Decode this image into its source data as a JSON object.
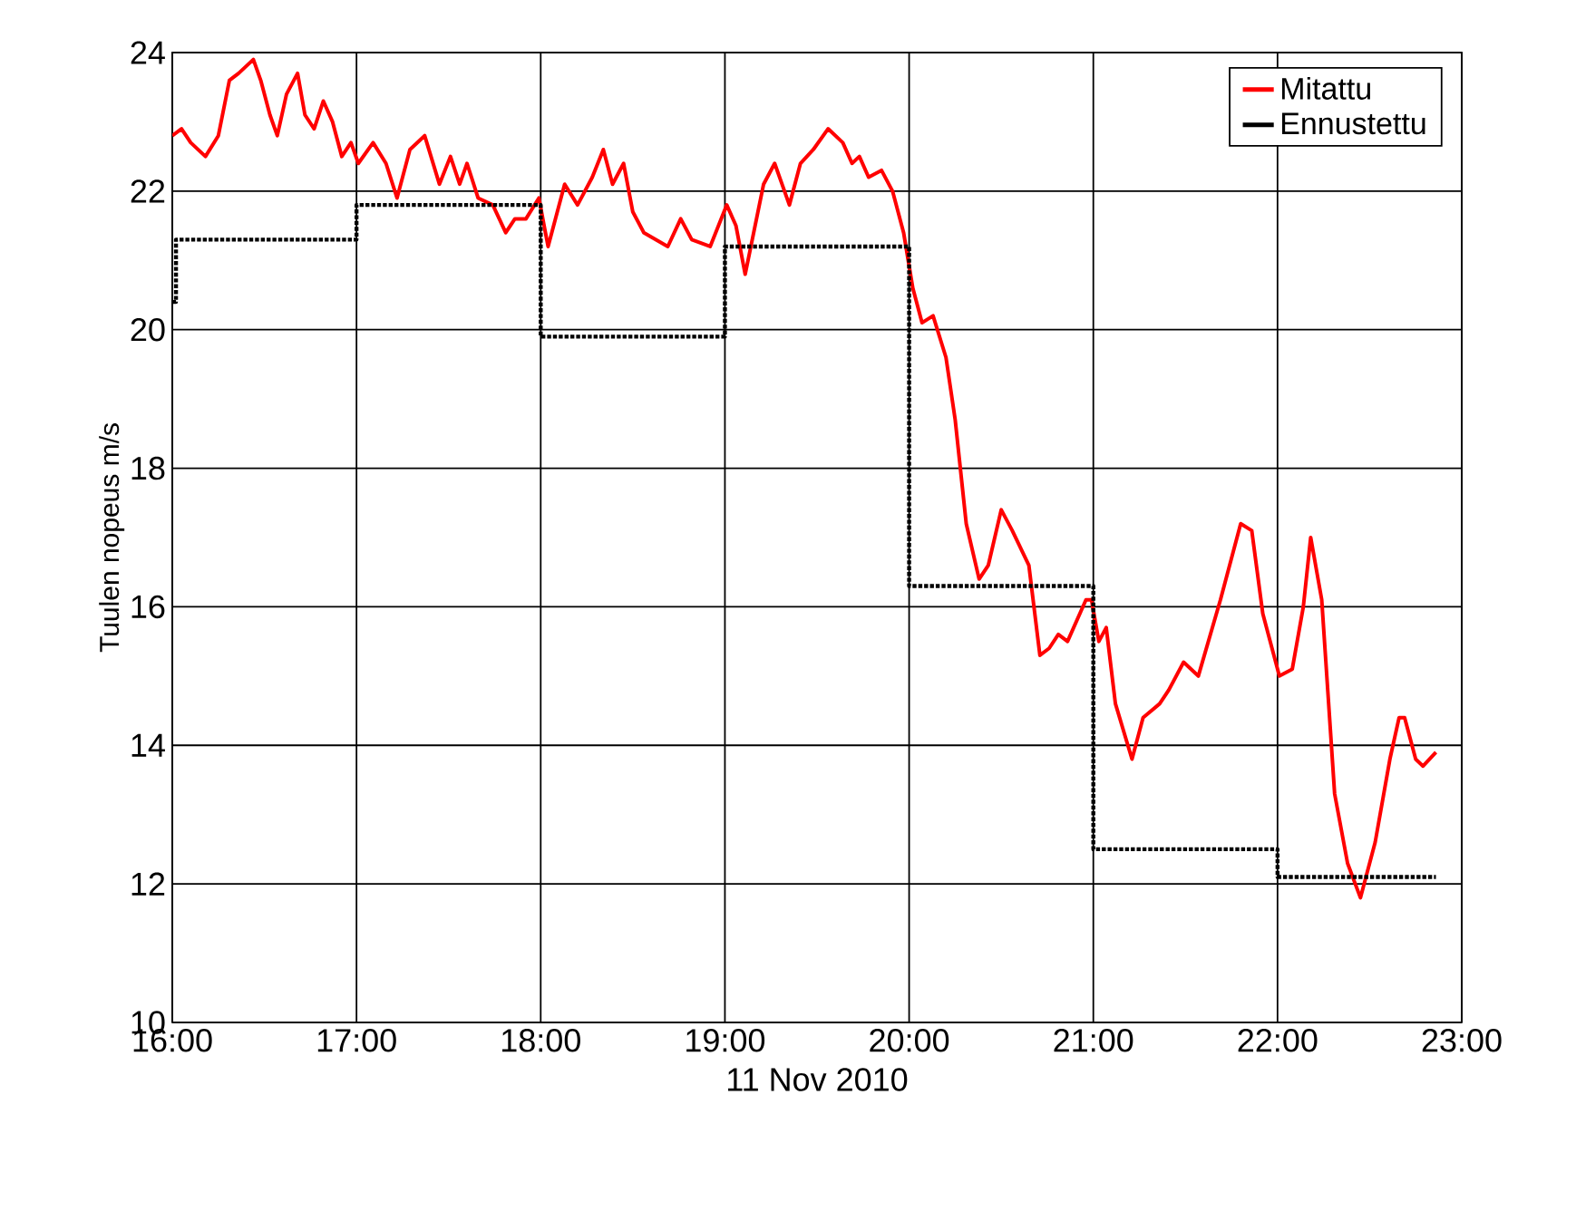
{
  "chart_data": {
    "type": "line",
    "xlabel": "11 Nov 2010",
    "ylabel": "Tuulen nopeus m/s",
    "xlim": [
      16,
      23
    ],
    "xticks": [
      {
        "value": 16,
        "label": "16:00"
      },
      {
        "value": 17,
        "label": "17:00"
      },
      {
        "value": 18,
        "label": "18:00"
      },
      {
        "value": 19,
        "label": "19:00"
      },
      {
        "value": 20,
        "label": "20:00"
      },
      {
        "value": 21,
        "label": "21:00"
      },
      {
        "value": 22,
        "label": "22:00"
      },
      {
        "value": 23,
        "label": "23:00"
      }
    ],
    "ylim": [
      10,
      24
    ],
    "yticks": [
      10,
      12,
      14,
      16,
      18,
      20,
      22,
      24
    ],
    "grid": true,
    "legend": "top right",
    "series": [
      {
        "name": "Mitattu",
        "color": "#ff0000",
        "line_style": "solid",
        "x": [
          16.0,
          16.05,
          16.1,
          16.18,
          16.25,
          16.31,
          16.36,
          16.44,
          16.48,
          16.53,
          16.57,
          16.62,
          16.68,
          16.72,
          16.77,
          16.82,
          16.87,
          16.92,
          16.97,
          17.01,
          17.09,
          17.16,
          17.22,
          17.29,
          17.37,
          17.45,
          17.51,
          17.56,
          17.6,
          17.66,
          17.74,
          17.81,
          17.86,
          17.92,
          17.99,
          18.04,
          18.13,
          18.2,
          18.28,
          18.34,
          18.39,
          18.45,
          18.5,
          18.56,
          18.69,
          18.76,
          18.82,
          18.92,
          19.01,
          19.06,
          19.11,
          19.21,
          19.27,
          19.31,
          19.35,
          19.41,
          19.48,
          19.56,
          19.64,
          19.69,
          19.73,
          19.78,
          19.85,
          19.91,
          19.97,
          20.02,
          20.07,
          20.13,
          20.2,
          20.25,
          20.31,
          20.38,
          20.43,
          20.5,
          20.56,
          20.65,
          20.71,
          20.76,
          20.81,
          20.86,
          20.96,
          20.99,
          21.03,
          21.07,
          21.12,
          21.21,
          21.27,
          21.36,
          21.41,
          21.49,
          21.57,
          21.69,
          21.8,
          21.86,
          21.92,
          22.01,
          22.08,
          22.14,
          22.18,
          22.24,
          22.31,
          22.38,
          22.45,
          22.53,
          22.61,
          22.66,
          22.69,
          22.75,
          22.79,
          22.86
        ],
        "values": [
          22.8,
          22.9,
          22.7,
          22.5,
          22.8,
          23.6,
          23.7,
          23.9,
          23.6,
          23.1,
          22.8,
          23.4,
          23.7,
          23.1,
          22.9,
          23.3,
          23.0,
          22.5,
          22.7,
          22.4,
          22.7,
          22.4,
          21.9,
          22.6,
          22.8,
          22.1,
          22.5,
          22.1,
          22.4,
          21.9,
          21.8,
          21.4,
          21.6,
          21.6,
          21.9,
          21.2,
          22.1,
          21.8,
          22.2,
          22.6,
          22.1,
          22.4,
          21.7,
          21.4,
          21.2,
          21.6,
          21.3,
          21.2,
          21.8,
          21.5,
          20.8,
          22.1,
          22.4,
          22.1,
          21.8,
          22.4,
          22.6,
          22.9,
          22.7,
          22.4,
          22.5,
          22.2,
          22.3,
          22.0,
          21.4,
          20.6,
          20.1,
          20.2,
          19.6,
          18.7,
          17.2,
          16.4,
          16.6,
          17.4,
          17.1,
          16.6,
          15.3,
          15.4,
          15.6,
          15.5,
          16.1,
          16.1,
          15.5,
          15.7,
          14.6,
          13.8,
          14.4,
          14.6,
          14.8,
          15.2,
          15.0,
          16.1,
          17.2,
          17.1,
          15.9,
          15.0,
          15.1,
          16.0,
          17.0,
          16.1,
          13.3,
          12.3,
          11.8,
          12.6,
          13.8,
          14.4,
          14.4,
          13.8,
          13.7,
          13.9
        ]
      },
      {
        "name": "Ennustettu",
        "color": "#000000",
        "type": "step",
        "line_style": "dotted",
        "x": [
          16.0,
          16.02,
          17.0,
          18.0,
          19.0,
          20.0,
          21.0,
          22.0,
          22.86
        ],
        "values": [
          20.4,
          21.3,
          21.8,
          19.9,
          21.2,
          16.3,
          12.5,
          12.1,
          12.1
        ]
      }
    ]
  }
}
